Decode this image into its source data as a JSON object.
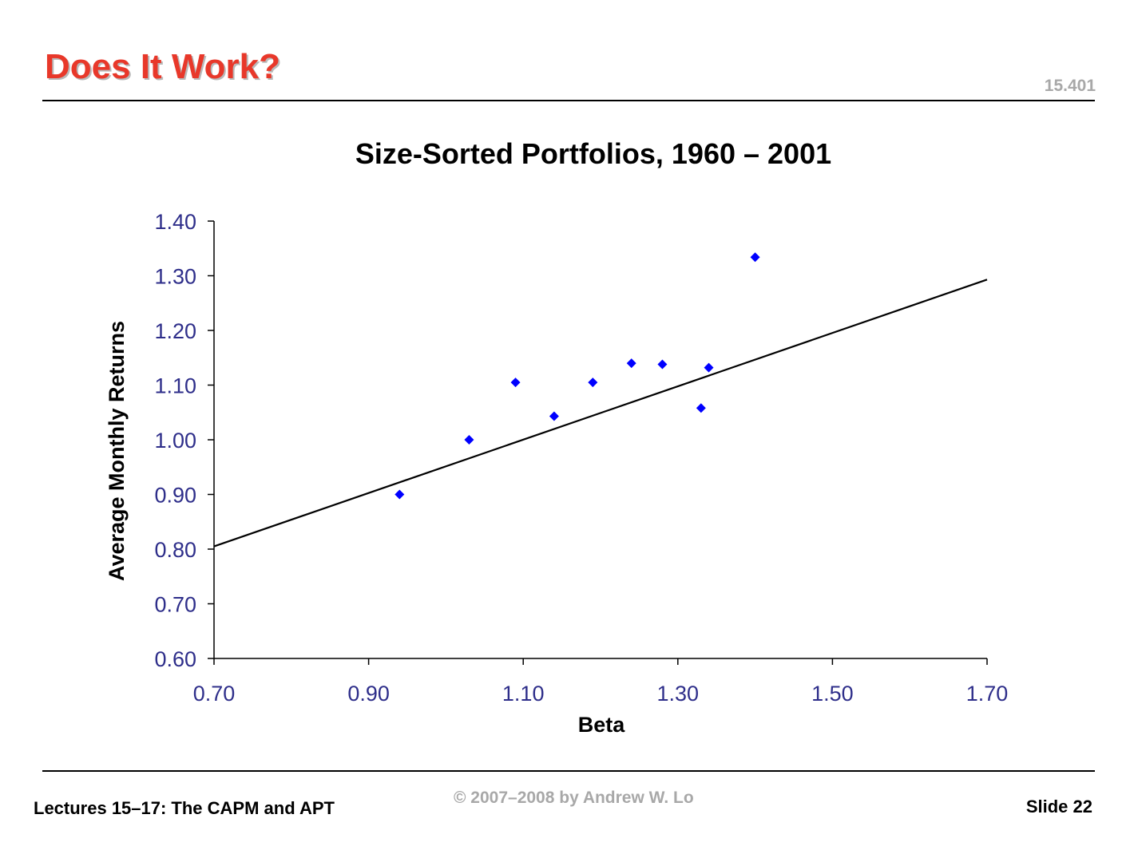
{
  "slide": {
    "title": "Does It Work?",
    "course_code": "15.401",
    "footer_left": "Lectures 15–17: The CAPM and APT",
    "footer_center": "© 2007–2008 by Andrew W. Lo",
    "footer_right": "Slide 22"
  },
  "chart_data": {
    "type": "scatter",
    "title": "Size-Sorted Portfolios, 1960 – 2001",
    "xlabel": "Beta",
    "ylabel": "Average Monthly Returns",
    "xlim": [
      0.7,
      1.7
    ],
    "ylim": [
      0.6,
      1.4
    ],
    "xticks": [
      "0.70",
      "0.90",
      "1.10",
      "1.30",
      "1.50",
      "1.70"
    ],
    "yticks": [
      "0.60",
      "0.70",
      "0.80",
      "0.90",
      "1.00",
      "1.10",
      "1.20",
      "1.30",
      "1.40"
    ],
    "grid": false,
    "points": [
      {
        "x": 0.94,
        "y": 0.9
      },
      {
        "x": 1.03,
        "y": 1.0
      },
      {
        "x": 1.09,
        "y": 1.105
      },
      {
        "x": 1.14,
        "y": 1.043
      },
      {
        "x": 1.19,
        "y": 1.105
      },
      {
        "x": 1.24,
        "y": 1.14
      },
      {
        "x": 1.28,
        "y": 1.138
      },
      {
        "x": 1.33,
        "y": 1.058
      },
      {
        "x": 1.34,
        "y": 1.132
      },
      {
        "x": 1.4,
        "y": 1.334
      }
    ],
    "fit_line": {
      "x": [
        0.7,
        1.7
      ],
      "y": [
        0.805,
        1.293
      ]
    },
    "colors": {
      "points": "#0000ff",
      "line": "#000000",
      "tick_labels": "#2e2e8a"
    }
  }
}
